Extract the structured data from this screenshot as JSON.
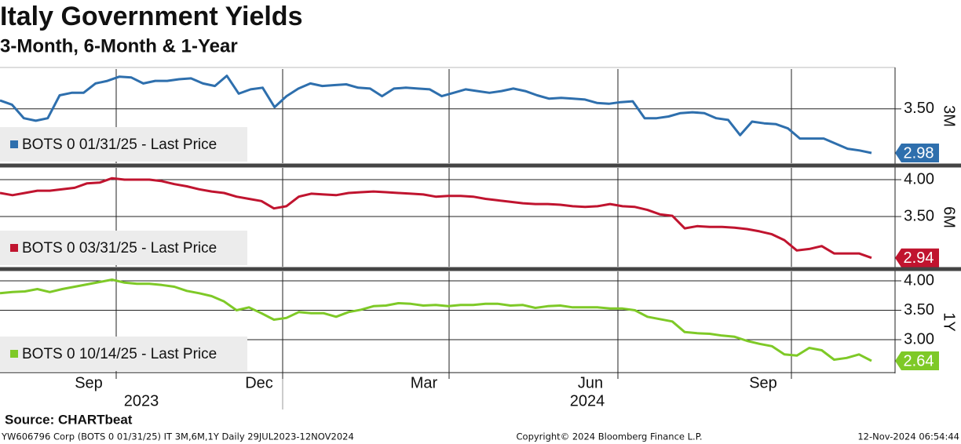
{
  "title": "Italy Government Yields",
  "subtitle": "3-Month, 6-Month & 1-Year",
  "x_labels": [
    "Sep",
    "Dec",
    "Mar",
    "Jun",
    "Sep"
  ],
  "year_labels": [
    "2023",
    "2024"
  ],
  "source": "Source: CHARTbeat",
  "footer": {
    "left": "YW606796 Corp (BOTS 0 01/31/25) IT 3M,6M,1Y  Daily 29JUL2023-12NOV2024",
    "center": "Copyright© 2024 Bloomberg Finance L.P.",
    "right": "12-Nov-2024 06:54:44"
  },
  "chart_data": [
    {
      "type": "line",
      "panel_label": "3M",
      "ylim": [
        2.86,
        3.97
      ],
      "yticks": [
        {
          "value": 3.5,
          "label": "3.50"
        }
      ],
      "grid": true,
      "series": [
        {
          "name": "BOTS 0 01/31/25 - Last Price",
          "color": "#2e6fad",
          "values": [
            3.6,
            3.55,
            3.39,
            3.36,
            3.39,
            3.66,
            3.69,
            3.69,
            3.8,
            3.83,
            3.88,
            3.87,
            3.8,
            3.83,
            3.83,
            3.85,
            3.86,
            3.8,
            3.77,
            3.89,
            3.68,
            3.73,
            3.75,
            3.52,
            3.65,
            3.74,
            3.8,
            3.77,
            3.78,
            3.79,
            3.75,
            3.74,
            3.65,
            3.74,
            3.75,
            3.74,
            3.73,
            3.65,
            3.69,
            3.73,
            3.71,
            3.69,
            3.71,
            3.74,
            3.71,
            3.66,
            3.62,
            3.63,
            3.62,
            3.61,
            3.57,
            3.56,
            3.58,
            3.59,
            3.39,
            3.39,
            3.41,
            3.45,
            3.46,
            3.45,
            3.39,
            3.37,
            3.19,
            3.35,
            3.33,
            3.32,
            3.27,
            3.15,
            3.15,
            3.15,
            3.09,
            3.03,
            3.01,
            2.98
          ]
        }
      ]
    },
    {
      "type": "line",
      "panel_label": "6M",
      "ylim": [
        2.82,
        4.16
      ],
      "yticks": [
        {
          "value": 4.0,
          "label": "4.00"
        },
        {
          "value": 3.5,
          "label": "3.50"
        }
      ],
      "grid": true,
      "series": [
        {
          "name": "BOTS 0 03/31/25 - Last Price",
          "color": "#c0142f",
          "values": [
            3.82,
            3.79,
            3.82,
            3.85,
            3.85,
            3.87,
            3.89,
            3.95,
            3.96,
            4.02,
            4.0,
            4.0,
            4.0,
            3.98,
            3.94,
            3.91,
            3.87,
            3.84,
            3.82,
            3.77,
            3.74,
            3.71,
            3.61,
            3.64,
            3.77,
            3.81,
            3.8,
            3.79,
            3.82,
            3.83,
            3.84,
            3.83,
            3.82,
            3.81,
            3.8,
            3.77,
            3.78,
            3.78,
            3.77,
            3.74,
            3.72,
            3.7,
            3.68,
            3.67,
            3.67,
            3.66,
            3.64,
            3.63,
            3.64,
            3.67,
            3.64,
            3.63,
            3.59,
            3.53,
            3.51,
            3.34,
            3.37,
            3.36,
            3.36,
            3.35,
            3.33,
            3.3,
            3.26,
            3.18,
            3.04,
            3.06,
            3.1,
            3.0,
            3.0,
            3.0,
            2.94
          ]
        }
      ]
    },
    {
      "type": "line",
      "panel_label": "1Y",
      "ylim": [
        2.44,
        4.16
      ],
      "yticks": [
        {
          "value": 4.0,
          "label": "4.00"
        },
        {
          "value": 3.5,
          "label": "3.50"
        },
        {
          "value": 3.0,
          "label": "3.00"
        }
      ],
      "grid": true,
      "series": [
        {
          "name": "BOTS 0 10/14/25 - Last Price",
          "color": "#7ec927",
          "values": [
            3.79,
            3.81,
            3.82,
            3.86,
            3.81,
            3.86,
            3.9,
            3.94,
            3.98,
            4.02,
            3.97,
            3.95,
            3.95,
            3.93,
            3.9,
            3.83,
            3.79,
            3.74,
            3.65,
            3.5,
            3.55,
            3.45,
            3.34,
            3.37,
            3.47,
            3.45,
            3.45,
            3.39,
            3.47,
            3.51,
            3.57,
            3.58,
            3.62,
            3.61,
            3.58,
            3.59,
            3.57,
            3.59,
            3.59,
            3.61,
            3.61,
            3.58,
            3.59,
            3.54,
            3.57,
            3.58,
            3.55,
            3.55,
            3.55,
            3.53,
            3.53,
            3.5,
            3.39,
            3.35,
            3.31,
            3.13,
            3.11,
            3.1,
            3.07,
            3.05,
            2.98,
            2.93,
            2.89,
            2.75,
            2.73,
            2.86,
            2.82,
            2.66,
            2.69,
            2.75,
            2.64
          ]
        }
      ]
    }
  ]
}
